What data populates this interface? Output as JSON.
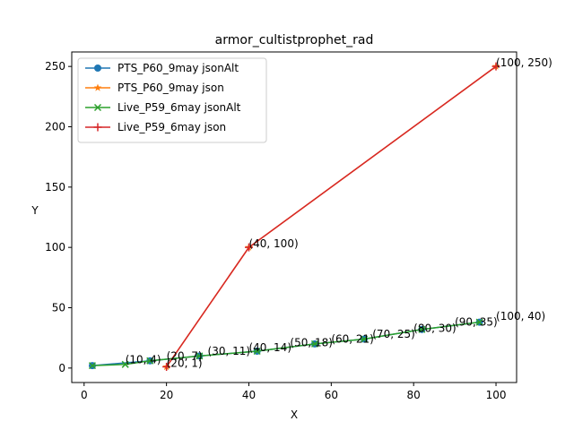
{
  "chart_data": {
    "type": "line",
    "title": "armor_cultistprophet_rad",
    "xlabel": "X",
    "ylabel": "Y",
    "xlim": [
      -3,
      105
    ],
    "ylim": [
      -12,
      262
    ],
    "xticks": [
      0,
      20,
      40,
      60,
      80,
      100
    ],
    "yticks": [
      0,
      50,
      100,
      150,
      200,
      250
    ],
    "grid": false,
    "legend": "top-left",
    "series": [
      {
        "name": "PTS_P60_9may jsonAlt",
        "color": "#1f77b4",
        "marker": "circle",
        "x": [
          2,
          16,
          28,
          42,
          56,
          68,
          82,
          96
        ],
        "y": [
          2,
          6,
          10,
          14,
          20,
          24,
          32,
          38
        ]
      },
      {
        "name": "PTS_P60_9may json",
        "color": "#ff7f0e",
        "marker": "star",
        "x": [
          20,
          40,
          100
        ],
        "y": [
          1,
          100,
          250
        ]
      },
      {
        "name": "Live_P59_6may jsonAlt",
        "color": "#2ca02c",
        "marker": "x",
        "x": [
          2,
          10,
          16,
          28,
          42,
          56,
          68,
          82,
          96
        ],
        "y": [
          2,
          3,
          6,
          10,
          14,
          20,
          24,
          32,
          38
        ]
      },
      {
        "name": "Live_P59_6may json",
        "color": "#d62728",
        "marker": "plus",
        "x": [
          20,
          40,
          100
        ],
        "y": [
          1,
          100,
          250
        ]
      }
    ],
    "annotations": [
      {
        "text": "(10, 4)",
        "x": 10,
        "y": 4
      },
      {
        "text": "(20, 1)",
        "x": 20,
        "y": 1
      },
      {
        "text": "(20, 7)",
        "x": 20,
        "y": 7
      },
      {
        "text": "(30, 11)",
        "x": 30,
        "y": 11
      },
      {
        "text": "(40, 14)",
        "x": 40,
        "y": 14
      },
      {
        "text": "(40, 100)",
        "x": 40,
        "y": 100
      },
      {
        "text": "(50, 18)",
        "x": 50,
        "y": 18
      },
      {
        "text": "(60, 21)",
        "x": 60,
        "y": 21
      },
      {
        "text": "(70, 25)",
        "x": 70,
        "y": 25
      },
      {
        "text": "(80, 30)",
        "x": 80,
        "y": 30
      },
      {
        "text": "(90, 35)",
        "x": 90,
        "y": 35
      },
      {
        "text": "(100, 40)",
        "x": 100,
        "y": 40
      },
      {
        "text": "(100, 250)",
        "x": 100,
        "y": 250
      }
    ]
  }
}
